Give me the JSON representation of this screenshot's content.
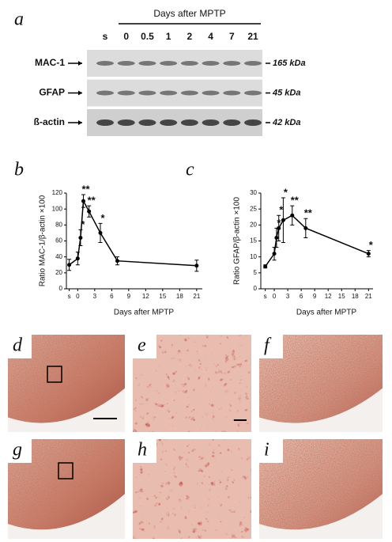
{
  "blot": {
    "label": "a",
    "title": "Days after MPTP",
    "lanes": [
      "s",
      "0",
      "0.5",
      "1",
      "2",
      "4",
      "7",
      "21"
    ],
    "rows": [
      {
        "name": "MAC-1",
        "size": "165 kDa"
      },
      {
        "name": "GFAP",
        "size": "45 kDa"
      },
      {
        "name": "ß-actin",
        "size": "42 kDa"
      }
    ]
  },
  "chart_data": [
    {
      "type": "line",
      "label": "b",
      "ylabel": "Ratio MAC-1/β-actin ×100",
      "xlabel": "Days after MPTP",
      "x": [
        -1.5,
        0,
        0.5,
        1,
        2,
        4,
        7,
        21
      ],
      "values": [
        30,
        38,
        64,
        110,
        97,
        70,
        35,
        29
      ],
      "errors": [
        7,
        8,
        10,
        8,
        7,
        12,
        5,
        7
      ],
      "color": "#000000",
      "xlim": [
        -2,
        22
      ],
      "ylim": [
        0,
        120
      ],
      "xticks": [
        {
          "value": -1.5,
          "label": "s"
        },
        0,
        3,
        6,
        9,
        12,
        15,
        18,
        21
      ],
      "yticks": [
        0,
        20,
        40,
        60,
        80,
        100,
        120
      ],
      "annotations": [
        {
          "x": 0.5,
          "text": "*"
        },
        {
          "x": 1,
          "text": "**"
        },
        {
          "x": 2,
          "text": "**"
        },
        {
          "x": 4,
          "text": "*"
        }
      ]
    },
    {
      "type": "line",
      "label": "c",
      "ylabel": "Ratio GFAP/β-actin ×100",
      "xlabel": "Days after MPTP",
      "x": [
        -2,
        0,
        0.5,
        1,
        2,
        4,
        7,
        21
      ],
      "values": [
        7,
        11,
        16,
        19,
        21.5,
        23,
        19,
        11
      ],
      "errors": [
        0.5,
        2,
        3,
        4,
        7,
        3,
        3,
        1
      ],
      "color": "#000000",
      "xlim": [
        -3,
        22
      ],
      "ylim": [
        0,
        30
      ],
      "xticks": [
        {
          "value": -2,
          "label": "s"
        },
        0,
        3,
        6,
        9,
        12,
        15,
        18,
        21
      ],
      "yticks": [
        0,
        5,
        10,
        15,
        20,
        25,
        30
      ],
      "annotations": [
        {
          "x": 0.5,
          "text": "*"
        },
        {
          "x": 1,
          "text": "*"
        },
        {
          "x": 2,
          "text": "*"
        },
        {
          "x": 4,
          "text": "**"
        },
        {
          "x": 7,
          "text": "**"
        },
        {
          "x": 21,
          "text": "*"
        }
      ]
    }
  ],
  "micrographs": [
    {
      "label": "d"
    },
    {
      "label": "e"
    },
    {
      "label": "f"
    },
    {
      "label": "g"
    },
    {
      "label": "h"
    },
    {
      "label": "i"
    }
  ]
}
